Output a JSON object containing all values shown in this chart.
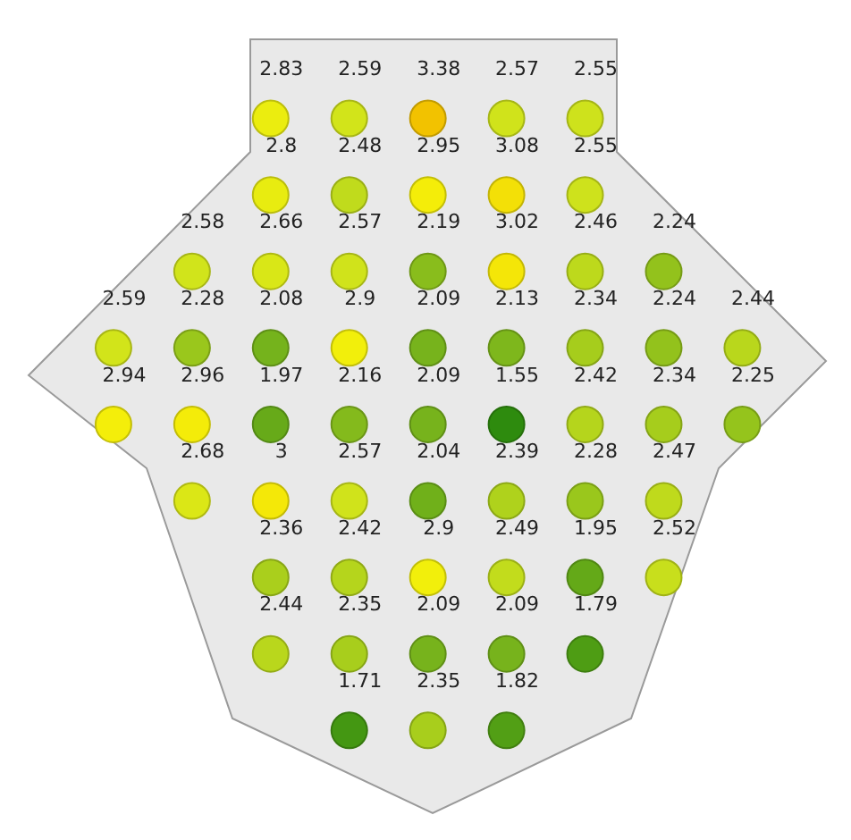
{
  "chart_data": {
    "type": "other",
    "values": [
      2.83,
      2.59,
      3.38,
      2.57,
      2.55,
      2.8,
      2.48,
      2.95,
      3.08,
      2.55,
      2.58,
      2.66,
      2.57,
      2.19,
      3.02,
      2.46,
      2.24,
      2.59,
      2.28,
      2.08,
      2.9,
      2.09,
      2.13,
      2.34,
      2.24,
      2.44,
      2.94,
      2.96,
      1.97,
      2.16,
      2.09,
      1.55,
      2.42,
      2.34,
      2.25,
      2.68,
      3,
      2.57,
      2.04,
      2.39,
      2.28,
      2.47,
      2.36,
      2.42,
      2.9,
      2.49,
      1.95,
      2.52,
      2.44,
      2.35,
      2.09,
      2.09,
      1.79,
      1.71,
      2.35,
      1.82
    ],
    "data_labels": true
  }
}
